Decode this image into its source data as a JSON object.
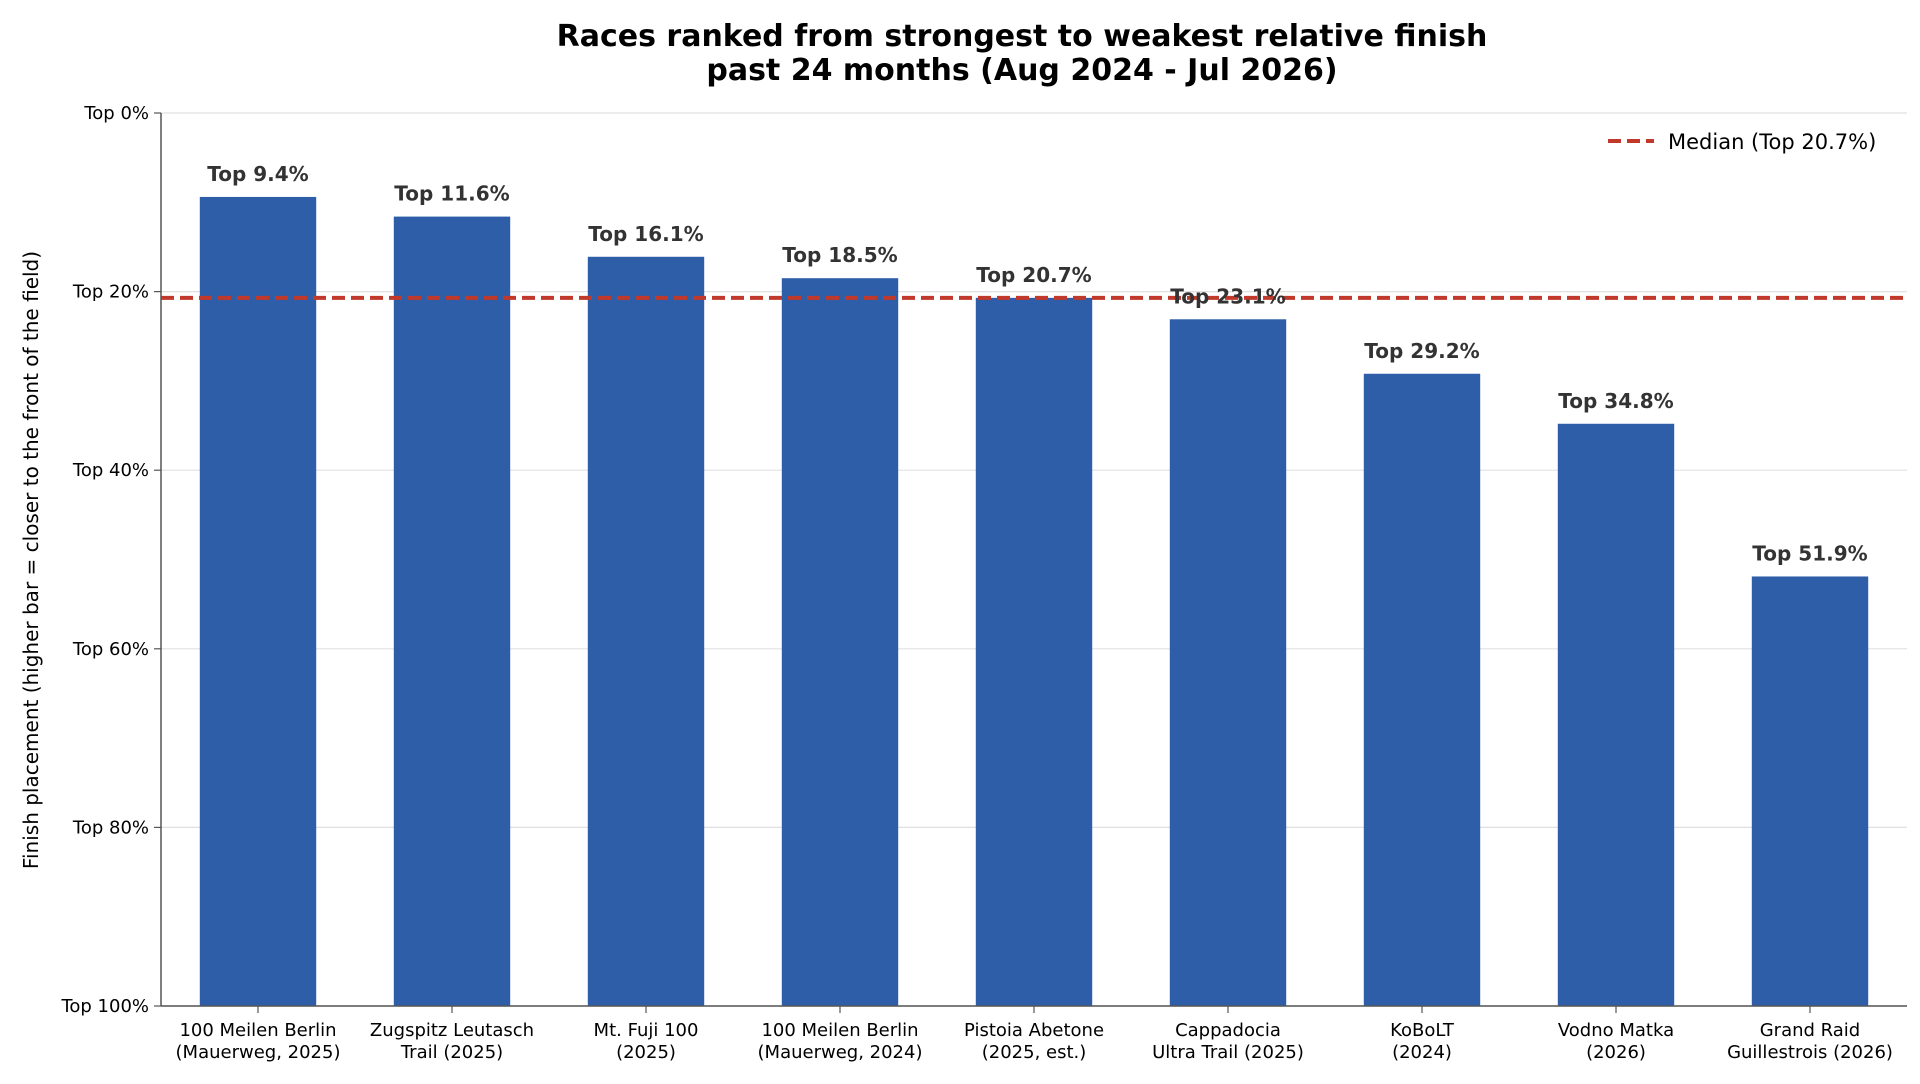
{
  "chart_data": {
    "type": "bar",
    "title": "Races ranked from strongest to weakest relative finish",
    "subtitle": "past 24 months (Aug 2024 - Jul 2026)",
    "xlabel": "",
    "ylabel": "Finish placement (higher bar = closer to the front of the field)",
    "categories": [
      [
        "100 Meilen Berlin",
        "(Mauerweg, 2025)"
      ],
      [
        "Zugspitz Leutasch",
        "Trail (2025)"
      ],
      [
        "Mt. Fuji 100",
        "(2025)"
      ],
      [
        "100 Meilen Berlin",
        "(Mauerweg, 2024)"
      ],
      [
        "Pistoia Abetone",
        "(2025, est.)"
      ],
      [
        "Cappadocia",
        "Ultra Trail (2025)"
      ],
      [
        "KoBoLT",
        "(2024)"
      ],
      [
        "Vodno Matka",
        "(2026)"
      ],
      [
        "Grand Raid",
        "Guillestrois (2026)"
      ]
    ],
    "values": [
      9.4,
      11.6,
      16.1,
      18.5,
      20.7,
      23.1,
      29.2,
      34.8,
      51.9
    ],
    "data_labels": [
      "Top 9.4%",
      "Top 11.6%",
      "Top 16.1%",
      "Top 18.5%",
      "Top 20.7%",
      "Top 23.1%",
      "Top 29.2%",
      "Top 34.8%",
      "Top 51.9%"
    ],
    "yticks": [
      0,
      20,
      40,
      60,
      80,
      100
    ],
    "ytick_labels": [
      "Top 0%",
      "Top 20%",
      "Top 40%",
      "Top 60%",
      "Top 80%",
      "Top 100%"
    ],
    "ylim": [
      100,
      0
    ],
    "y_inverted": true,
    "median": {
      "value": 20.7,
      "label": "Median (Top 20.7%)"
    },
    "legend_position": "top-right",
    "grid": "horizontal",
    "colors": {
      "bar": "#2e5ea8",
      "median": "#c0392b",
      "grid": "#e0e0e0",
      "axis": "#555555",
      "label": "#333333"
    }
  }
}
